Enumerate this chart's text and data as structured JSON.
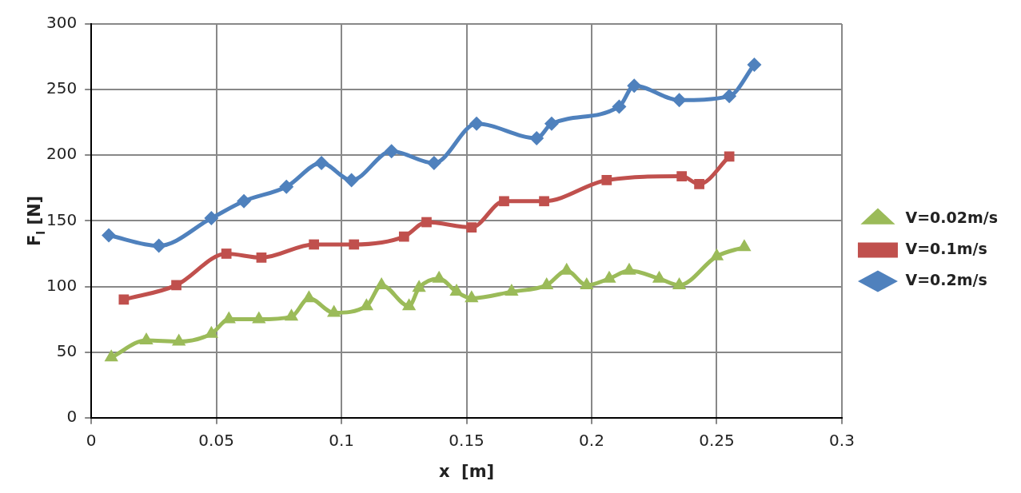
{
  "chart_data": {
    "type": "line",
    "xlabel": "x  [m]",
    "ylabel": "F$_{l}$ [N]",
    "xlim": [
      0,
      0.3
    ],
    "xticks": [
      0,
      0.05,
      0.1,
      0.15,
      0.2,
      0.25,
      0.3
    ],
    "ylim": [
      0,
      300
    ],
    "yticks": [
      0,
      50,
      100,
      150,
      200,
      250,
      300
    ],
    "grid": true,
    "legend": "right",
    "line_style": "solid",
    "series": [
      {
        "name": "V=0.02m/s",
        "color": "#9bbb59",
        "marker": "triangle",
        "x": [
          0.008,
          0.022,
          0.035,
          0.048,
          0.055,
          0.067,
          0.08,
          0.087,
          0.097,
          0.11,
          0.116,
          0.127,
          0.131,
          0.139,
          0.146,
          0.152,
          0.168,
          0.182,
          0.19,
          0.198,
          0.207,
          0.215,
          0.227,
          0.235,
          0.25,
          0.261
        ],
        "values": [
          46,
          59,
          58,
          64,
          75,
          75,
          77,
          91,
          80,
          85,
          101,
          85,
          99,
          106,
          96,
          91,
          96,
          101,
          112,
          101,
          106,
          112,
          106,
          101,
          123,
          130
        ]
      },
      {
        "name": "V=0.1m/s",
        "color": "#c0504d",
        "marker": "square",
        "x": [
          0.013,
          0.034,
          0.054,
          0.068,
          0.089,
          0.105,
          0.125,
          0.134,
          0.152,
          0.165,
          0.181,
          0.206,
          0.236,
          0.243,
          0.255
        ],
        "values": [
          90,
          101,
          125,
          122,
          132,
          132,
          138,
          149,
          145,
          165,
          165,
          181,
          184,
          178,
          199
        ]
      },
      {
        "name": "V=0.2m/s",
        "color": "#4f81bd",
        "marker": "diamond",
        "x": [
          0.007,
          0.027,
          0.048,
          0.061,
          0.078,
          0.092,
          0.104,
          0.12,
          0.137,
          0.154,
          0.178,
          0.184,
          0.211,
          0.217,
          0.235,
          0.255,
          0.265
        ],
        "values": [
          139,
          131,
          152,
          165,
          176,
          194,
          181,
          203,
          194,
          224,
          213,
          224,
          237,
          253,
          242,
          245,
          269
        ]
      }
    ]
  }
}
